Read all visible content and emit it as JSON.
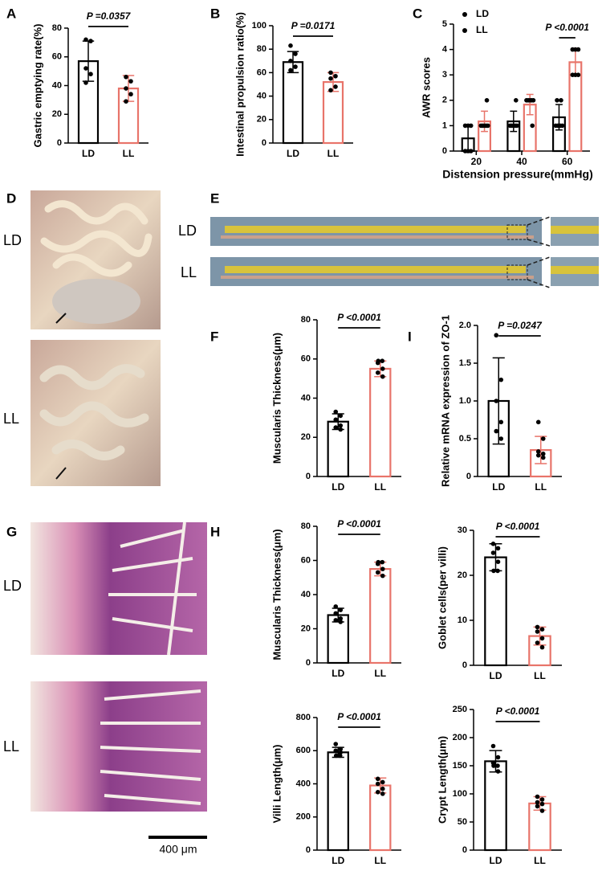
{
  "images": [
    {
      "letter": "D",
      "labels": [
        "LD",
        "LL"
      ]
    },
    {
      "letter": "E",
      "labels": [
        "LD",
        "LL"
      ]
    },
    {
      "letter": "G",
      "labels": [
        "LD",
        "LL"
      ],
      "scale_bar": "400 μm"
    }
  ],
  "chart_data": [
    {
      "type": "bar",
      "panel": "A",
      "ylabel": "Gastric emptying rate(%)",
      "categories": [
        "LD",
        "LL"
      ],
      "values": [
        57,
        38
      ],
      "errors": [
        14,
        9
      ],
      "points": [
        [
          72,
          71,
          52,
          48,
          42
        ],
        [
          46,
          43,
          38,
          34,
          29
        ]
      ],
      "colors": [
        "#000000",
        "#e8746a"
      ],
      "ylim": [
        0,
        80
      ],
      "yticks": [
        0,
        20,
        40,
        60,
        80
      ],
      "annotation": "P =0.0357"
    },
    {
      "type": "bar",
      "panel": "B",
      "ylabel": "Intestinal propulsion ratio(%)",
      "categories": [
        "LD",
        "LL"
      ],
      "values": [
        69,
        52
      ],
      "errors": [
        9,
        8
      ],
      "points": [
        [
          83,
          76,
          70,
          65,
          62
        ],
        [
          60,
          57,
          55,
          48,
          45
        ]
      ],
      "colors": [
        "#000000",
        "#e8746a"
      ],
      "ylim": [
        0,
        100
      ],
      "yticks": [
        0,
        20,
        40,
        60,
        80,
        100
      ],
      "annotation": "P =0.0171"
    },
    {
      "type": "grouped_bar",
      "panel": "C",
      "ylabel": "AWR scores",
      "xlabel": "Distension pressure(mmHg)",
      "categories": [
        "20",
        "40",
        "60"
      ],
      "series": [
        {
          "name": "LD",
          "color": "#000000",
          "values": [
            0.5,
            1.17,
            1.33
          ],
          "errors": [
            0.55,
            0.4,
            0.5
          ],
          "points": [
            [
              0,
              0,
              0,
              1,
              1,
              1
            ],
            [
              1,
              1,
              1,
              1,
              1,
              2
            ],
            [
              1,
              1,
              1,
              1,
              2,
              2
            ]
          ]
        },
        {
          "name": "LL",
          "color": "#e8746a",
          "values": [
            1.17,
            1.83,
            3.5
          ],
          "errors": [
            0.4,
            0.4,
            0.55
          ],
          "points": [
            [
              1,
              1,
              1,
              1,
              1,
              2
            ],
            [
              2,
              2,
              2,
              2,
              2,
              1
            ],
            [
              4,
              4,
              4,
              3,
              3,
              3
            ]
          ]
        }
      ],
      "legend": "upper left",
      "ylim": [
        0,
        5
      ],
      "yticks": [
        0,
        1,
        2,
        3,
        4,
        5
      ],
      "annotation": "P <0.0001",
      "annotation_category": 2
    },
    {
      "type": "bar",
      "panel": "F",
      "ylabel": "Muscularis Thickness(μm)",
      "categories": [
        "LD",
        "LL"
      ],
      "values": [
        28,
        55
      ],
      "errors": [
        4,
        4
      ],
      "points": [
        [
          33,
          31,
          29,
          26,
          25,
          24
        ],
        [
          59,
          59,
          58,
          55,
          53,
          51
        ]
      ],
      "colors": [
        "#000000",
        "#e8746a"
      ],
      "ylim": [
        0,
        80
      ],
      "yticks": [
        0,
        20,
        40,
        60,
        80
      ],
      "annotation": "P <0.0001"
    },
    {
      "type": "bar",
      "panel": "I",
      "ylabel": "Relative mRNA expression of ZO-1",
      "categories": [
        "LD",
        "LL"
      ],
      "values": [
        1.0,
        0.35
      ],
      "errors": [
        0.57,
        0.18
      ],
      "points": [
        [
          1.87,
          1.28,
          1.0,
          0.72,
          0.6,
          0.5
        ],
        [
          0.72,
          0.5,
          0.33,
          0.3,
          0.28,
          0.25
        ]
      ],
      "colors": [
        "#000000",
        "#e8746a"
      ],
      "ylim": [
        0,
        2
      ],
      "yticks": [
        0,
        0.5,
        {
          "value": 1,
          "label": "1.0"
        },
        1.5,
        {
          "value": 2,
          "label": "2.0"
        }
      ],
      "annotation": "P =0.0247"
    },
    {
      "type": "bar",
      "panel": "H",
      "ylabel": "Muscularis Thickness(μm)",
      "categories": [
        "LD",
        "LL"
      ],
      "values": [
        28,
        55
      ],
      "errors": [
        4,
        4
      ],
      "points": [
        [
          33,
          31,
          29,
          26,
          25,
          24
        ],
        [
          59,
          59,
          58,
          55,
          53,
          51
        ]
      ],
      "colors": [
        "#000000",
        "#e8746a"
      ],
      "ylim": [
        0,
        80
      ],
      "yticks": [
        0,
        20,
        40,
        60,
        80
      ],
      "annotation": "P <0.0001"
    },
    {
      "type": "bar",
      "ylabel": "Goblet cells(per villi)",
      "categories": [
        "LD",
        "LL"
      ],
      "values": [
        24,
        6.5
      ],
      "errors": [
        3,
        2
      ],
      "points": [
        [
          27,
          26,
          25,
          23,
          21,
          21
        ],
        [
          8.5,
          8,
          7.5,
          6,
          5,
          4
        ]
      ],
      "colors": [
        "#000000",
        "#e8746a"
      ],
      "ylim": [
        0,
        30
      ],
      "yticks": [
        0,
        10,
        20,
        30
      ],
      "annotation": "P <0.0001"
    },
    {
      "type": "bar",
      "ylabel": "Villi Length(μm)",
      "categories": [
        "LD",
        "LL"
      ],
      "values": [
        590,
        390
      ],
      "errors": [
        30,
        45
      ],
      "points": [
        [
          640,
          610,
          600,
          590,
          570,
          570
        ],
        [
          430,
          410,
          400,
          370,
          350,
          340
        ]
      ],
      "colors": [
        "#000000",
        "#e8746a"
      ],
      "ylim": [
        0,
        800
      ],
      "yticks": [
        0,
        200,
        400,
        600,
        800
      ],
      "annotation": "P <0.0001"
    },
    {
      "type": "bar",
      "ylabel": "Crypt Length(μm)",
      "categories": [
        "LD",
        "LL"
      ],
      "values": [
        158,
        83
      ],
      "errors": [
        19,
        12
      ],
      "points": [
        [
          185,
          165,
          155,
          150,
          150,
          140
        ],
        [
          95,
          90,
          85,
          82,
          78,
          70
        ]
      ],
      "colors": [
        "#000000",
        "#e8746a"
      ],
      "ylim": [
        0,
        250
      ],
      "yticks": [
        0,
        50,
        100,
        150,
        200,
        250
      ],
      "annotation": "P <0.0001"
    }
  ]
}
